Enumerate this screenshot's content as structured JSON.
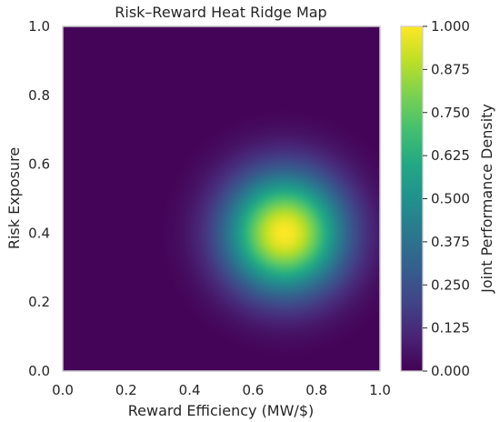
{
  "chart_data": {
    "type": "heatmap",
    "title": "Risk–Reward Heat Ridge Map",
    "xlabel": "Reward Efficiency (MW/$)",
    "ylabel": "Risk Exposure",
    "xlim": [
      0.0,
      1.0
    ],
    "ylim": [
      0.0,
      1.0
    ],
    "x_ticks": [
      "0.0",
      "0.2",
      "0.4",
      "0.6",
      "0.8",
      "1.0"
    ],
    "y_ticks": [
      "0.0",
      "0.2",
      "0.4",
      "0.6",
      "0.8",
      "1.0"
    ],
    "colormap": "viridis",
    "colorbar": {
      "label": "Joint Performance Density",
      "range": [
        0.0,
        1.0
      ],
      "ticks": [
        "0.000",
        "0.125",
        "0.250",
        "0.375",
        "0.500",
        "0.625",
        "0.750",
        "0.875",
        "1.000"
      ]
    },
    "peak": {
      "x": 0.7,
      "y": 0.4,
      "value": 1.0
    },
    "spread": {
      "sigma_x": 0.13,
      "sigma_y": 0.13
    },
    "grid": false
  }
}
